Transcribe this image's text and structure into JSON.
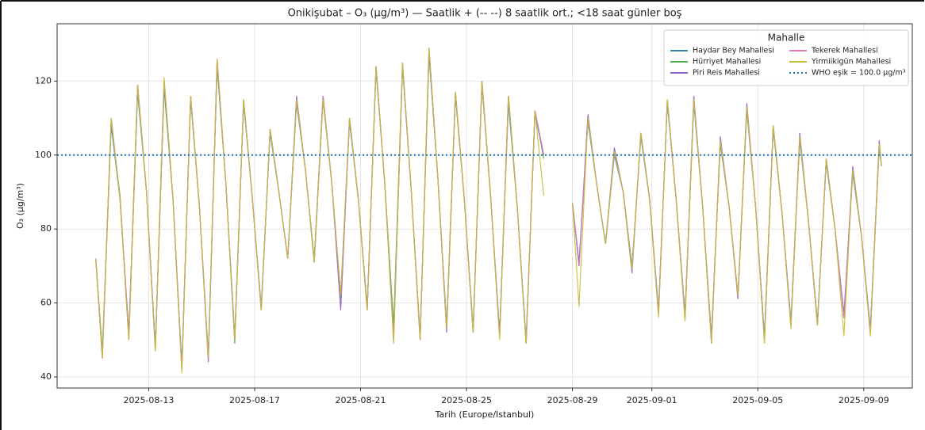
{
  "chart_data": {
    "type": "line",
    "title": "Onikişubat – O₃ (µg/m³) — Saatlik + (-- --) 8 saatlik ort.; <18 saat günler boş",
    "xlabel": "Tarih (Europe/Istanbul)",
    "ylabel": "O₃ (µg/m³)",
    "legend_title": "Mahalle",
    "legend": "upper right",
    "grid": true,
    "x": [
      "2025-08-11 00:00",
      "2025-08-11 06:00",
      "2025-08-11 14:00",
      "2025-08-11 22:00",
      "2025-08-12 06:00",
      "2025-08-12 14:00",
      "2025-08-12 22:00",
      "2025-08-13 06:00",
      "2025-08-13 14:00",
      "2025-08-13 22:00",
      "2025-08-14 06:00",
      "2025-08-14 14:00",
      "2025-08-14 22:00",
      "2025-08-15 06:00",
      "2025-08-15 14:00",
      "2025-08-15 22:00",
      "2025-08-16 06:00",
      "2025-08-16 14:00",
      "2025-08-16 22:00",
      "2025-08-17 06:00",
      "2025-08-17 14:00",
      "2025-08-17 22:00",
      "2025-08-18 06:00",
      "2025-08-18 14:00",
      "2025-08-18 22:00",
      "2025-08-19 06:00",
      "2025-08-19 14:00",
      "2025-08-19 22:00",
      "2025-08-20 06:00",
      "2025-08-20 14:00",
      "2025-08-20 22:00",
      "2025-08-21 06:00",
      "2025-08-21 14:00",
      "2025-08-21 22:00",
      "2025-08-22 06:00",
      "2025-08-22 14:00",
      "2025-08-22 22:00",
      "2025-08-23 06:00",
      "2025-08-23 14:00",
      "2025-08-23 22:00",
      "2025-08-24 06:00",
      "2025-08-24 14:00",
      "2025-08-24 22:00",
      "2025-08-25 06:00",
      "2025-08-25 14:00",
      "2025-08-25 22:00",
      "2025-08-26 06:00",
      "2025-08-26 14:00",
      "2025-08-26 22:00",
      "2025-08-27 06:00",
      "2025-08-27 14:00",
      "2025-08-27 22:00",
      "2025-08-28 12:00",
      "2025-08-29 00:00",
      "2025-08-29 06:00",
      "2025-08-29 14:00",
      "2025-08-29 22:00",
      "2025-08-30 06:00",
      "2025-08-30 14:00",
      "2025-08-30 22:00",
      "2025-08-31 06:00",
      "2025-08-31 14:00",
      "2025-08-31 22:00",
      "2025-09-01 06:00",
      "2025-09-01 14:00",
      "2025-09-01 22:00",
      "2025-09-02 06:00",
      "2025-09-02 14:00",
      "2025-09-02 22:00",
      "2025-09-03 06:00",
      "2025-09-03 14:00",
      "2025-09-03 22:00",
      "2025-09-04 06:00",
      "2025-09-04 14:00",
      "2025-09-04 22:00",
      "2025-09-05 06:00",
      "2025-09-05 14:00",
      "2025-09-05 22:00",
      "2025-09-06 06:00",
      "2025-09-06 14:00",
      "2025-09-06 22:00",
      "2025-09-07 06:00",
      "2025-09-07 14:00",
      "2025-09-07 22:00",
      "2025-09-08 06:00",
      "2025-09-08 14:00",
      "2025-09-08 22:00",
      "2025-09-09 06:00",
      "2025-09-09 14:00",
      "2025-09-09 16:00"
    ],
    "series": [
      {
        "name": "Haydar Bey Mahallesi",
        "color": "#2b83ad",
        "values": [
          72,
          46,
          108,
          88,
          51,
          117,
          90,
          48,
          118,
          88,
          43,
          115,
          86,
          46,
          124,
          92,
          51,
          114,
          88,
          59,
          106,
          90,
          72,
          114,
          96,
          71,
          115,
          92,
          62,
          109,
          88,
          59,
          123,
          92,
          51,
          124,
          90,
          51,
          127,
          94,
          54,
          116,
          88,
          53,
          119,
          88,
          52,
          114,
          86,
          50,
          111,
          100,
          null,
          87,
          71,
          109,
          92,
          76,
          100,
          90,
          70,
          105,
          88,
          58,
          114,
          88,
          57,
          114,
          86,
          51,
          103,
          86,
          62,
          112,
          86,
          51,
          107,
          84,
          55,
          104,
          82,
          55,
          98,
          80,
          57,
          95,
          78,
          53,
          102,
          97
        ]
      },
      {
        "name": "Hürriyet Mahallesi",
        "color": "#4cae4f",
        "values": [
          72,
          47,
          109,
          89,
          50,
          118,
          90,
          47,
          119,
          88,
          42,
          116,
          86,
          45,
          125,
          92,
          49,
          115,
          88,
          58,
          107,
          90,
          72,
          115,
          96,
          72,
          116,
          92,
          61,
          110,
          88,
          58,
          124,
          92,
          54,
          125,
          90,
          50,
          128,
          94,
          53,
          117,
          88,
          52,
          120,
          88,
          51,
          116,
          86,
          49,
          112,
          99,
          null,
          87,
          70,
          110,
          92,
          76,
          101,
          90,
          69,
          106,
          88,
          57,
          115,
          88,
          56,
          115,
          86,
          50,
          104,
          86,
          62,
          113,
          86,
          50,
          108,
          84,
          54,
          105,
          82,
          54,
          99,
          80,
          56,
          96,
          78,
          52,
          103,
          97
        ]
      },
      {
        "name": "Piri Reis Mahallesi",
        "color": "#8f5fc8",
        "values": [
          72,
          45,
          110,
          88,
          52,
          119,
          90,
          48,
          120,
          88,
          42,
          116,
          86,
          44,
          126,
          92,
          50,
          115,
          88,
          58,
          107,
          90,
          72,
          116,
          96,
          71,
          116,
          92,
          58,
          110,
          88,
          58,
          124,
          92,
          50,
          124,
          90,
          50,
          129,
          94,
          52,
          117,
          88,
          52,
          120,
          88,
          51,
          116,
          86,
          49,
          112,
          100,
          null,
          87,
          70,
          111,
          92,
          76,
          102,
          90,
          68,
          106,
          88,
          57,
          115,
          88,
          56,
          116,
          86,
          49,
          105,
          86,
          61,
          114,
          86,
          50,
          108,
          84,
          54,
          106,
          82,
          54,
          99,
          80,
          56,
          97,
          78,
          52,
          104,
          97
        ]
      },
      {
        "name": "Tekerek Mahallesi",
        "color": "#e27bbd",
        "values": [
          72,
          45,
          110,
          88,
          50,
          119,
          90,
          47,
          120,
          88,
          42,
          116,
          86,
          45,
          126,
          92,
          50,
          115,
          88,
          58,
          107,
          90,
          72,
          115,
          96,
          71,
          116,
          92,
          62,
          110,
          88,
          58,
          124,
          92,
          50,
          125,
          90,
          50,
          129,
          94,
          53,
          117,
          88,
          52,
          120,
          88,
          51,
          116,
          86,
          49,
          112,
          100,
          null,
          87,
          70,
          110,
          92,
          76,
          101,
          90,
          69,
          106,
          88,
          57,
          115,
          88,
          56,
          115,
          86,
          50,
          104,
          86,
          62,
          113,
          86,
          50,
          108,
          84,
          54,
          105,
          82,
          54,
          99,
          80,
          56,
          96,
          78,
          52,
          103,
          97
        ]
      },
      {
        "name": "Yirmiikigün Mahallesi",
        "color": "#c6bd3a",
        "values": [
          72,
          45,
          110,
          88,
          50,
          119,
          90,
          47,
          121,
          88,
          41,
          116,
          86,
          45,
          126,
          92,
          50,
          115,
          88,
          58,
          107,
          90,
          72,
          115,
          96,
          71,
          115,
          92,
          62,
          110,
          88,
          58,
          124,
          92,
          49,
          125,
          90,
          50,
          129,
          94,
          53,
          117,
          88,
          52,
          120,
          88,
          50,
          116,
          86,
          49,
          112,
          89,
          null,
          87,
          59,
          110,
          92,
          76,
          101,
          90,
          69,
          106,
          88,
          56,
          115,
          88,
          55,
          115,
          86,
          49,
          104,
          86,
          62,
          113,
          86,
          49,
          108,
          84,
          53,
          105,
          82,
          54,
          99,
          80,
          51,
          96,
          78,
          51,
          103,
          97
        ]
      }
    ],
    "threshold": {
      "value": 100,
      "label": "WHO eşik = 100.0 µg/m³",
      "color": "#1f77b4"
    },
    "xlim": [
      "2025-08-09 13:00",
      "2025-09-10 20:00"
    ],
    "xticks": [
      "2025-08-13",
      "2025-08-17",
      "2025-08-21",
      "2025-08-25",
      "2025-08-29",
      "2025-09-01",
      "2025-09-05",
      "2025-09-09"
    ],
    "ylim": [
      37,
      135.5
    ],
    "yticks": [
      40,
      60,
      80,
      100,
      120
    ]
  }
}
